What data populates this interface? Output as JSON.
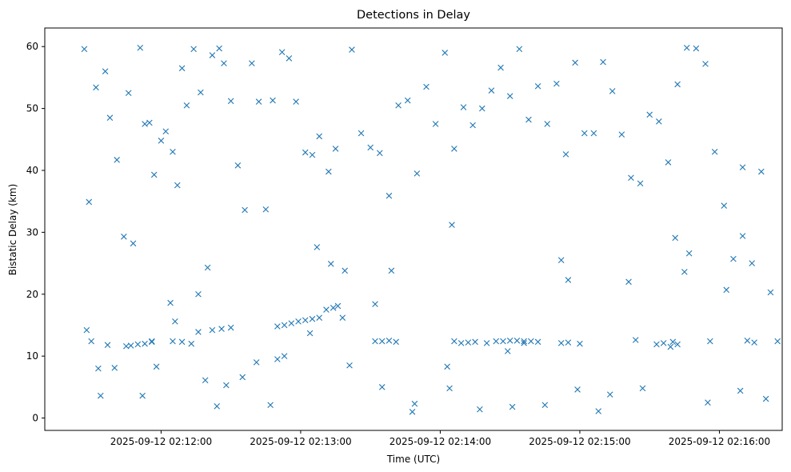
{
  "chart_data": {
    "type": "scatter",
    "title": "Detections in Delay",
    "xlabel": "Time (UTC)",
    "ylabel": "Bistatic Delay (km)",
    "marker": "x",
    "color": "#1f77b4",
    "grid": false,
    "xlim": [
      "2025-09-12 02:11:10",
      "2025-09-12 02:16:27"
    ],
    "ylim": [
      -2,
      63
    ],
    "xticks": [
      "2025-09-12 02:12:00",
      "2025-09-12 02:13:00",
      "2025-09-12 02:14:00",
      "2025-09-12 02:15:00",
      "2025-09-12 02:16:00"
    ],
    "yticks": [
      "0",
      "10",
      "20",
      "30",
      "40",
      "50",
      "60"
    ],
    "series": [
      {
        "x": [
          "2025-09-12 02:11:27",
          "2025-09-12 02:11:28",
          "2025-09-12 02:11:32",
          "2025-09-12 02:11:33",
          "2025-09-12 02:11:36",
          "2025-09-12 02:11:38",
          "2025-09-12 02:11:41",
          "2025-09-12 02:11:44",
          "2025-09-12 02:11:46",
          "2025-09-12 02:11:48",
          "2025-09-12 02:11:51",
          "2025-09-12 02:11:53",
          "2025-09-12 02:11:55",
          "2025-09-12 02:11:57",
          "2025-09-12 02:12:00",
          "2025-09-12 02:12:02",
          "2025-09-12 02:12:05",
          "2025-09-12 02:12:07",
          "2025-09-12 02:12:09",
          "2025-09-12 02:12:11",
          "2025-09-12 02:12:14",
          "2025-09-12 02:12:17",
          "2025-09-12 02:12:20",
          "2025-09-12 02:12:22",
          "2025-09-12 02:12:25",
          "2025-09-12 02:12:27",
          "2025-09-12 02:12:30",
          "2025-09-12 02:12:33",
          "2025-09-12 02:12:36",
          "2025-09-12 02:12:39",
          "2025-09-12 02:12:42",
          "2025-09-12 02:12:45",
          "2025-09-12 02:12:48",
          "2025-09-12 02:12:52",
          "2025-09-12 02:12:55",
          "2025-09-12 02:12:58",
          "2025-09-12 02:13:02",
          "2025-09-12 02:13:05",
          "2025-09-12 02:13:08",
          "2025-09-12 02:13:12",
          "2025-09-12 02:13:15",
          "2025-09-12 02:13:19",
          "2025-09-12 02:13:22",
          "2025-09-12 02:13:26",
          "2025-09-12 02:13:30",
          "2025-09-12 02:13:34",
          "2025-09-12 02:13:38",
          "2025-09-12 02:13:42",
          "2025-09-12 02:13:46",
          "2025-09-12 02:13:50",
          "2025-09-12 02:13:54",
          "2025-09-12 02:13:58",
          "2025-09-12 02:14:02",
          "2025-09-12 02:14:06",
          "2025-09-12 02:14:10",
          "2025-09-12 02:14:14",
          "2025-09-12 02:14:18",
          "2025-09-12 02:14:22",
          "2025-09-12 02:14:26",
          "2025-09-12 02:14:30",
          "2025-09-12 02:14:34",
          "2025-09-12 02:14:38",
          "2025-09-12 02:14:42",
          "2025-09-12 02:14:46",
          "2025-09-12 02:14:50",
          "2025-09-12 02:14:54",
          "2025-09-12 02:14:58",
          "2025-09-12 02:15:02",
          "2025-09-12 02:15:06",
          "2025-09-12 02:15:10",
          "2025-09-12 02:15:14",
          "2025-09-12 02:15:18",
          "2025-09-12 02:15:22",
          "2025-09-12 02:15:26",
          "2025-09-12 02:15:30",
          "2025-09-12 02:15:34",
          "2025-09-12 02:15:38",
          "2025-09-12 02:15:42",
          "2025-09-12 02:15:46",
          "2025-09-12 02:15:50",
          "2025-09-12 02:15:54",
          "2025-09-12 02:15:58",
          "2025-09-12 02:16:02",
          "2025-09-12 02:16:06",
          "2025-09-12 02:16:10",
          "2025-09-12 02:16:14",
          "2025-09-12 02:16:18",
          "2025-09-12 02:16:22",
          "2025-09-12 02:11:30",
          "2025-09-12 02:11:37",
          "2025-09-12 02:11:45",
          "2025-09-12 02:11:56",
          "2025-09-12 02:12:06",
          "2025-09-12 02:12:19",
          "2025-09-12 02:12:35",
          "2025-09-12 02:12:50",
          "2025-09-12 02:13:04",
          "2025-09-12 02:13:18",
          "2025-09-12 02:13:32",
          "2025-09-12 02:13:48",
          "2025-09-12 02:14:04",
          "2025-09-12 02:14:20",
          "2025-09-12 02:14:36",
          "2025-09-12 02:14:52",
          "2025-09-12 02:15:08",
          "2025-09-12 02:15:24",
          "2025-09-12 02:15:40",
          "2025-09-12 02:15:56",
          "2025-09-12 02:16:12",
          "2025-09-12 02:16:25",
          "2025-09-12 02:11:47",
          "2025-09-12 02:11:50",
          "2025-09-12 02:11:53",
          "2025-09-12 02:11:56",
          "2025-09-12 02:12:05",
          "2025-09-12 02:12:09",
          "2025-09-12 02:12:13",
          "2025-09-12 02:12:16",
          "2025-09-12 02:12:22",
          "2025-09-12 02:12:26",
          "2025-09-12 02:12:30",
          "2025-09-12 02:12:50",
          "2025-09-12 02:12:53",
          "2025-09-12 02:12:56",
          "2025-09-12 02:12:59",
          "2025-09-12 02:13:02",
          "2025-09-12 02:13:05",
          "2025-09-12 02:13:08",
          "2025-09-12 02:13:11",
          "2025-09-12 02:13:14",
          "2025-09-12 02:13:16",
          "2025-09-12 02:13:32",
          "2025-09-12 02:13:35",
          "2025-09-12 02:13:38",
          "2025-09-12 02:13:41",
          "2025-09-12 02:14:06",
          "2025-09-12 02:14:09",
          "2025-09-12 02:14:12",
          "2025-09-12 02:14:15",
          "2025-09-12 02:14:24",
          "2025-09-12 02:14:27",
          "2025-09-12 02:14:30",
          "2025-09-12 02:14:33",
          "2025-09-12 02:14:36",
          "2025-09-12 02:14:39",
          "2025-09-12 02:14:42",
          "2025-09-12 02:14:52",
          "2025-09-12 02:14:55",
          "2025-09-12 02:15:00",
          "2025-09-12 02:15:33",
          "2025-09-12 02:15:36",
          "2025-09-12 02:15:39",
          "2025-09-12 02:15:42",
          "2025-09-12 02:15:45",
          "2025-09-12 02:16:03",
          "2025-09-12 02:16:10",
          "2025-09-12 02:11:29",
          "2025-09-12 02:11:40",
          "2025-09-12 02:11:52",
          "2025-09-12 02:12:04",
          "2025-09-12 02:12:16",
          "2025-09-12 02:12:28",
          "2025-09-12 02:12:41",
          "2025-09-12 02:12:53",
          "2025-09-12 02:13:07",
          "2025-09-12 02:13:21",
          "2025-09-12 02:13:35",
          "2025-09-12 02:13:49",
          "2025-09-12 02:14:03",
          "2025-09-12 02:14:17",
          "2025-09-12 02:14:31",
          "2025-09-12 02:14:45",
          "2025-09-12 02:14:59",
          "2025-09-12 02:15:13",
          "2025-09-12 02:15:27",
          "2025-09-12 02:15:41",
          "2025-09-12 02:15:55",
          "2025-09-12 02:16:09",
          "2025-09-12 02:16:20",
          "2025-09-12 02:11:34",
          "2025-09-12 02:11:58",
          "2025-09-12 02:12:24",
          "2025-09-12 02:12:47",
          "2025-09-12 02:13:13",
          "2025-09-12 02:13:39",
          "2025-09-12 02:14:05",
          "2025-09-12 02:14:29",
          "2025-09-12 02:14:55",
          "2025-09-12 02:15:21",
          "2025-09-12 02:15:47",
          "2025-09-12 02:16:15"
        ],
        "y": [
          59.6,
          14.2,
          53.4,
          8.0,
          56.0,
          48.5,
          41.7,
          29.3,
          52.5,
          28.2,
          59.8,
          47.5,
          47.7,
          39.3,
          44.8,
          46.3,
          43.0,
          37.6,
          56.5,
          50.5,
          59.6,
          52.6,
          24.3,
          58.6,
          59.7,
          57.3,
          51.2,
          40.8,
          33.6,
          57.3,
          51.1,
          33.7,
          51.3,
          59.1,
          58.1,
          51.1,
          42.9,
          42.5,
          45.5,
          39.8,
          43.5,
          23.8,
          59.5,
          46.0,
          43.7,
          42.8,
          35.9,
          50.5,
          51.3,
          39.5,
          53.5,
          47.5,
          59.0,
          43.5,
          50.2,
          47.3,
          50.0,
          52.9,
          56.6,
          52.0,
          59.6,
          48.2,
          53.6,
          47.5,
          54.0,
          42.6,
          57.4,
          46.0,
          46.0,
          57.5,
          52.8,
          45.8,
          38.8,
          37.9,
          49.0,
          47.9,
          41.3,
          53.9,
          59.8,
          59.7,
          57.2,
          43.0,
          34.3,
          25.7,
          40.5,
          25.0,
          39.8,
          20.3,
          12.4,
          11.8,
          11.6,
          12.4,
          15.6,
          6.1,
          6.6,
          9.5,
          13.7,
          16.2,
          12.4,
          1.0,
          4.8,
          12.1,
          12.1,
          25.5,
          1.1,
          12.6,
          12.3,
          12.4,
          12.5,
          12.4,
          11.7,
          11.9,
          12.0,
          12.3,
          12.4,
          12.3,
          12.0,
          13.9,
          14.2,
          14.4,
          14.6,
          14.8,
          15.0,
          15.3,
          15.6,
          15.8,
          16.0,
          16.2,
          17.5,
          17.8,
          18.1,
          18.4,
          12.4,
          12.5,
          12.3,
          12.4,
          12.1,
          12.2,
          12.3,
          12.4,
          12.4,
          12.5,
          12.5,
          12.4,
          12.4,
          12.3,
          12.1,
          12.2,
          12.0,
          11.9,
          12.1,
          11.5,
          11.9,
          23.6,
          20.7,
          29.4,
          34.9,
          8.1,
          3.6,
          18.6,
          20.0,
          5.3,
          9.0,
          10.0,
          27.6,
          8.5,
          5.0,
          2.3,
          8.3,
          1.4,
          1.8,
          2.1,
          4.6,
          3.8,
          4.8,
          29.1,
          2.5,
          4.4,
          3.1,
          3.6,
          8.3,
          1.9,
          2.1,
          24.9,
          23.8,
          31.2,
          10.8,
          22.3,
          22.0,
          26.6,
          12.2
        ]
      }
    ]
  }
}
